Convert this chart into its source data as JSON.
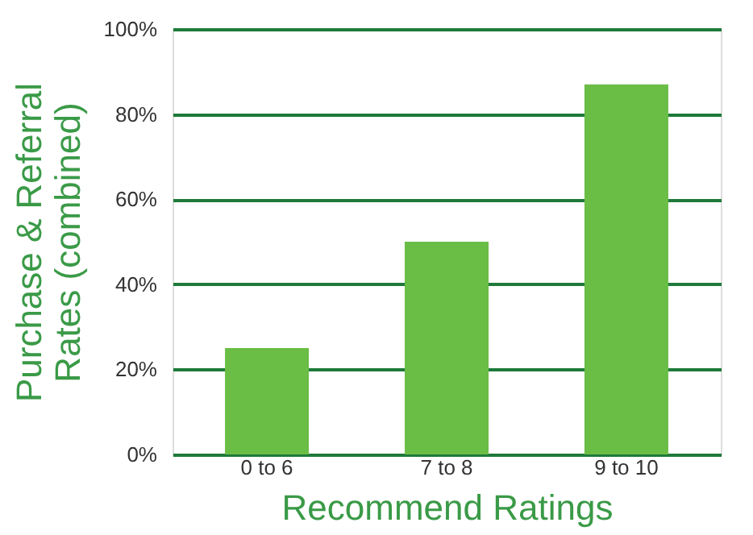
{
  "chart_data": {
    "type": "bar",
    "xlabel": "Recommend Ratings",
    "ylabel": "Purchase & Referral Rates (combined)",
    "categories": [
      "0 to 6",
      "7 to 8",
      "9 to 10"
    ],
    "values": [
      25,
      50,
      87
    ],
    "color": "#6abd45",
    "ylim": [
      0,
      100
    ],
    "yticks": [
      {
        "value": 0,
        "label": "0%"
      },
      {
        "value": 20,
        "label": "20%"
      },
      {
        "value": 40,
        "label": "40%"
      },
      {
        "value": 60,
        "label": "60%"
      },
      {
        "value": 80,
        "label": "80%"
      },
      {
        "value": 100,
        "label": "100%"
      }
    ],
    "grid": "y"
  }
}
